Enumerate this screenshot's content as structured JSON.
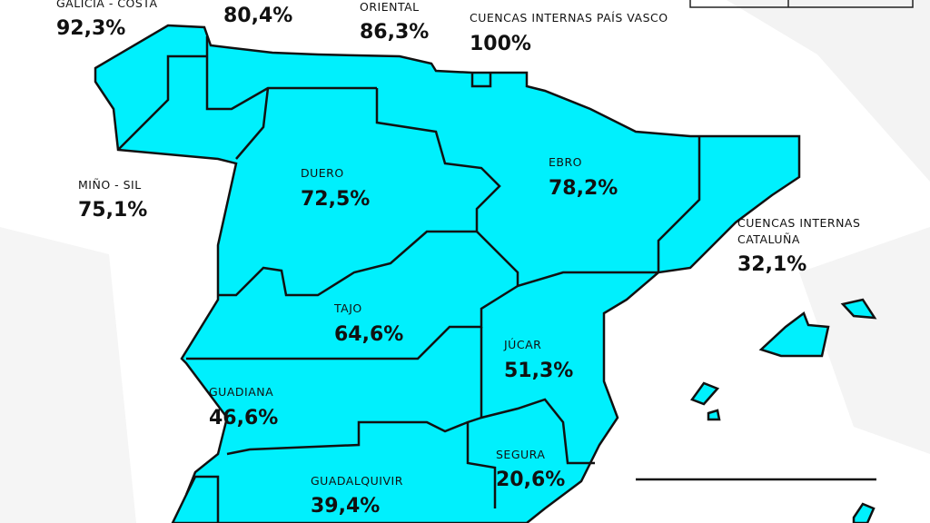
{
  "regions": [
    {
      "name": "GALICIA - COSTA",
      "value": "92,3%"
    },
    {
      "value": "80,4%"
    },
    {
      "name": "ORIENTAL",
      "value": "86,3%"
    },
    {
      "name": "CUENCAS INTERNAS PAÍS VASCO",
      "value": "100%"
    },
    {
      "name": "MIÑO - SIL",
      "value": "75,1%"
    },
    {
      "name": "DUERO",
      "value": "72,5%"
    },
    {
      "name": "EBRO",
      "value": "78,2%"
    },
    {
      "name_lines": [
        "CUENCAS INTERNAS",
        "CATALUÑA"
      ],
      "value": "32,1%"
    },
    {
      "name": "TAJO",
      "value": "64,6%"
    },
    {
      "name": "JÚCAR",
      "value": "51,3%"
    },
    {
      "name": "GUADIANA",
      "value": "46,6%"
    },
    {
      "name": "SEGURA",
      "value": "20,6%"
    },
    {
      "name": "GUADALQUIVIR",
      "value": "39,4%"
    }
  ]
}
